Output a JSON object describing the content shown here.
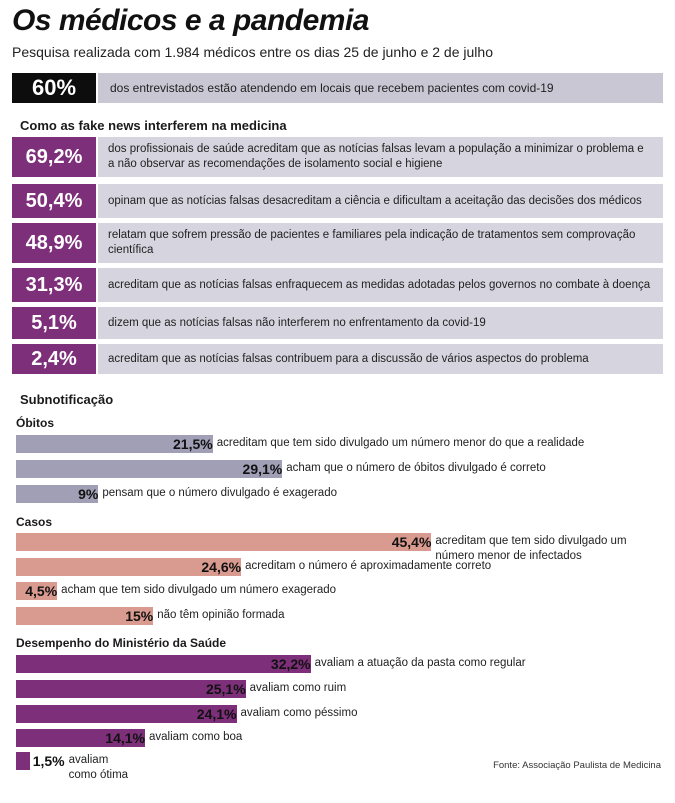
{
  "header": {
    "title": "Os médicos e a pandemia",
    "subtitle": "Pesquisa realizada com 1.984 médicos entre os dias 25 de junho e 2 de julho"
  },
  "highlight": {
    "value": "60%",
    "text": "dos entrevistados estão atendendo em locais que recebem pacientes com covid-19"
  },
  "colors": {
    "obitos": "#a09fb6",
    "casos": "#d99a8f",
    "desempenho": "#7d2f79",
    "fake_news_value_bg": "#7d2f79",
    "fake_news_text_bg": "#d6d4de",
    "highlight_value_bg": "#0d0d0d",
    "highlight_text_bg": "#c9c7d3"
  },
  "fake_news": {
    "heading": "Como as fake news interferem na medicina",
    "items": [
      {
        "value": "69,2%",
        "text": "dos profissionais de saúde acreditam que as notícias falsas levam a população a minimizar o problema e a não observar as recomendações de isolamento social e higiene"
      },
      {
        "value": "50,4%",
        "text": "opinam que as notícias falsas desacreditam a ciência e dificultam a aceitação das decisões dos médicos"
      },
      {
        "value": "48,9%",
        "text": "relatam que sofrem pressão de pacientes e familiares pela indicação de tratamentos sem comprovação científica"
      },
      {
        "value": "31,3%",
        "text": "acreditam que as notícias falsas enfraquecem as medidas adotadas pelos governos no combate à doença"
      },
      {
        "value": "5,1%",
        "text": "dizem que as notícias falsas não interferem no enfrentamento da covid-19"
      },
      {
        "value": "2,4%",
        "text": "acreditam que as notícias falsas contribuem para a discussão de vários aspectos do problema"
      }
    ]
  },
  "subnotificacao": {
    "heading": "Subnotificação"
  },
  "chart_data": [
    {
      "type": "bar",
      "orientation": "horizontal",
      "group": "Óbitos",
      "bars": [
        {
          "value": 21.5,
          "label": "21,5%",
          "text": "acreditam que tem sido divulgado um número menor do que a realidade"
        },
        {
          "value": 29.1,
          "label": "29,1%",
          "text": "acham que o número de óbitos divulgado é correto"
        },
        {
          "value": 9,
          "label": "9%",
          "text": "pensam que o número divulgado é exagerado"
        }
      ]
    },
    {
      "type": "bar",
      "orientation": "horizontal",
      "group": "Casos",
      "bars": [
        {
          "value": 45.4,
          "label": "45,4%",
          "text": "acreditam que tem sido divulgado um número menor de infectados"
        },
        {
          "value": 24.6,
          "label": "24,6%",
          "text": "acreditam o número é aproximadamente correto"
        },
        {
          "value": 4.5,
          "label": "4,5%",
          "text": "acham que tem sido divulgado um número exagerado"
        },
        {
          "value": 15,
          "label": "15%",
          "text": "não têm opinião formada"
        }
      ]
    },
    {
      "type": "bar",
      "orientation": "horizontal",
      "group": "Desempenho do Ministério da Saúde",
      "bars": [
        {
          "value": 32.2,
          "label": "32,2%",
          "text": "avaliam a atuação da pasta como regular"
        },
        {
          "value": 25.1,
          "label": "25,1%",
          "text": "avaliam como ruim"
        },
        {
          "value": 24.1,
          "label": "24,1%",
          "text": "avaliam como péssimo"
        },
        {
          "value": 14.1,
          "label": "14,1%",
          "text": "avaliam como boa"
        },
        {
          "value": 1.5,
          "label": "1,5%",
          "text": "avaliam como ótima"
        }
      ]
    }
  ],
  "source": "Fonte: Associação Paulista de Medicina"
}
